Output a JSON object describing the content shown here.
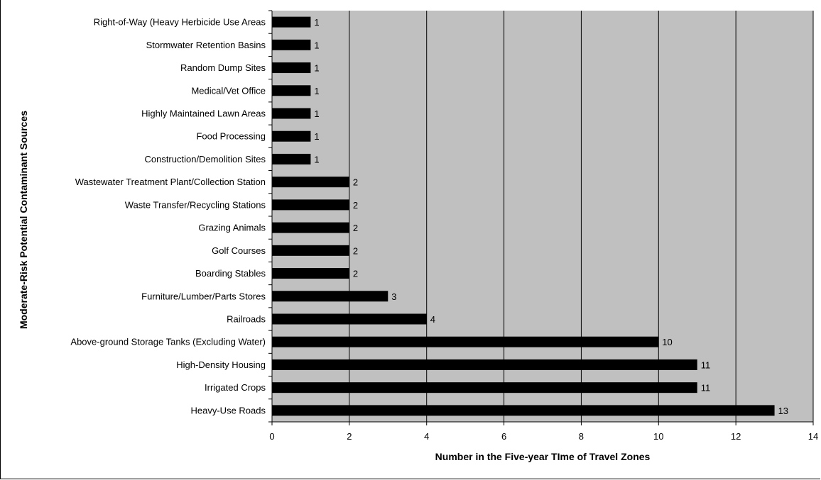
{
  "chart_data": {
    "type": "bar",
    "orientation": "horizontal",
    "categories": [
      "Right-of-Way (Heavy Herbicide Use Areas",
      "Stormwater Retention Basins",
      "Random Dump Sites",
      "Medical/Vet Office",
      "Highly Maintained Lawn Areas",
      "Food Processing",
      "Construction/Demolition Sites",
      "Wastewater Treatment Plant/Collection Station",
      "Waste Transfer/Recycling Stations",
      "Grazing Animals",
      "Golf Courses",
      "Boarding Stables",
      "Furniture/Lumber/Parts Stores",
      "Railroads",
      "Above-ground Storage Tanks (Excluding Water)",
      "High-Density Housing",
      "Irrigated Crops",
      "Heavy-Use Roads"
    ],
    "values": [
      1,
      1,
      1,
      1,
      1,
      1,
      1,
      2,
      2,
      2,
      2,
      2,
      3,
      4,
      10,
      11,
      11,
      13
    ],
    "xlabel": "Number in the Five-year TIme of Travel Zones",
    "ylabel": "Moderate-Risk Potential Contaminant Sources",
    "xlim": [
      0,
      14
    ],
    "xticks": [
      0,
      2,
      4,
      6,
      8,
      10,
      12,
      14
    ],
    "grid": "vertical",
    "colors": {
      "plot_background": "#c0c0c0",
      "bar": "#000000",
      "gridline": "#000000"
    }
  }
}
